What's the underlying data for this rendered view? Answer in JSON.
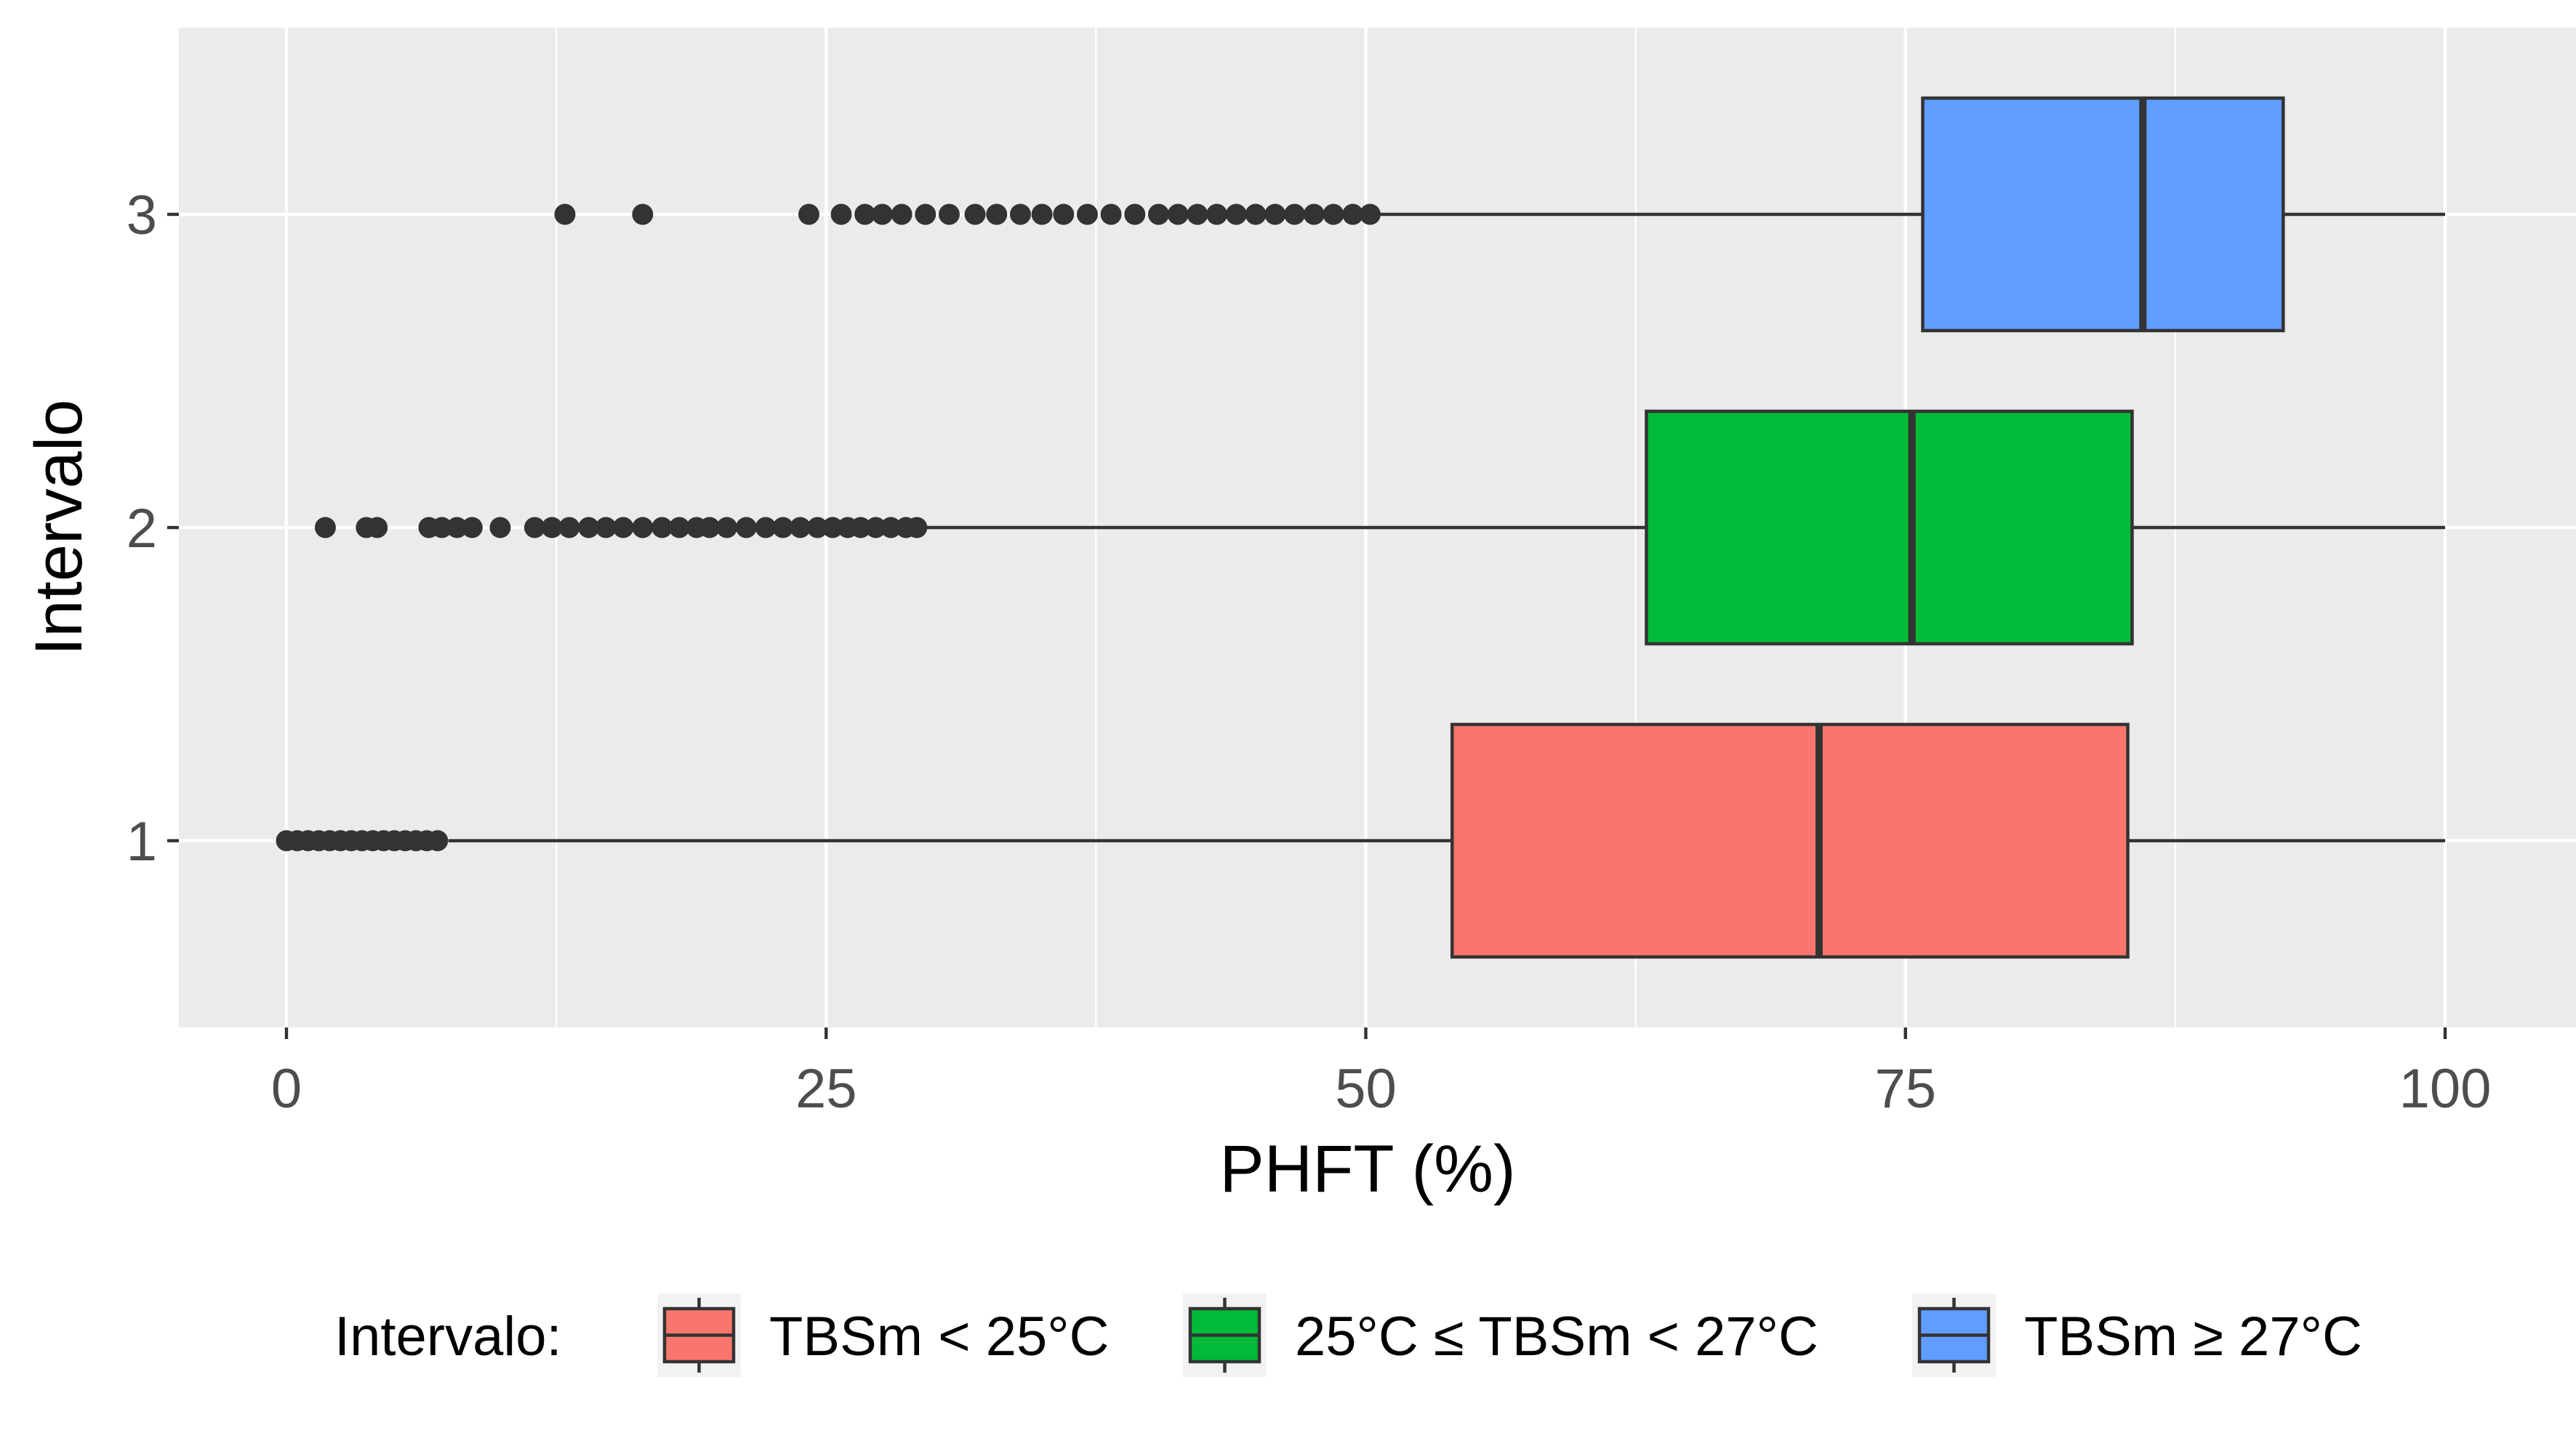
{
  "chart_data": {
    "type": "boxplot",
    "orientation": "horizontal",
    "xlabel": "PHFT (%)",
    "ylabel": "Intervalo",
    "xlim": [
      -1,
      100
    ],
    "x_ticks": [
      0,
      25,
      50,
      75,
      100
    ],
    "categories": [
      "1",
      "2",
      "3"
    ],
    "grid": true,
    "legend": {
      "position": "bottom",
      "title": "Intervalo:",
      "entries": [
        "TBSm < 25°C",
        "25°C ≤ TBSm < 27°C",
        "TBSm ≥ 27°C"
      ]
    },
    "series": [
      {
        "category": "1",
        "name": "TBSm < 25°C",
        "color": "#F8766D",
        "whisker_low": 7.5,
        "q1": 54,
        "median": 71,
        "q3": 85.3,
        "whisker_high": 100,
        "outliers": [
          0,
          0.5,
          1,
          1.5,
          2,
          2.5,
          3,
          3.5,
          4,
          4.5,
          5,
          5.5,
          6,
          6.5,
          7
        ]
      },
      {
        "category": "2",
        "name": "25°C ≤ TBSm < 27°C",
        "color": "#00BA38",
        "whisker_low": 29.5,
        "q1": 63,
        "median": 75.3,
        "q3": 85.5,
        "whisker_high": 100,
        "outliers": [
          1.8,
          3.7,
          4.2,
          6.6,
          7.2,
          7.9,
          8.6,
          9.9,
          11.5,
          12.3,
          13.1,
          14,
          14.8,
          15.6,
          16.5,
          17.4,
          18.2,
          19,
          19.6,
          20.4,
          21.3,
          22.2,
          23,
          23.8,
          24.6,
          25.3,
          26,
          26.6,
          27.3,
          28,
          28.7,
          29.2
        ]
      },
      {
        "category": "3",
        "name": "TBSm ≥ 27°C",
        "color": "#619CFF",
        "whisker_low": 50.5,
        "q1": 75.8,
        "median": 86,
        "q3": 92.5,
        "whisker_high": 100,
        "outliers": [
          12.9,
          16.5,
          24.2,
          25.7,
          26.8,
          27.6,
          28.5,
          29.6,
          30.7,
          31.9,
          32.9,
          34,
          35,
          36,
          37.1,
          38.2,
          39.3,
          40.4,
          41.3,
          42.2,
          43.1,
          44,
          44.9,
          45.8,
          46.7,
          47.6,
          48.5,
          49.4,
          50.2
        ]
      }
    ]
  }
}
